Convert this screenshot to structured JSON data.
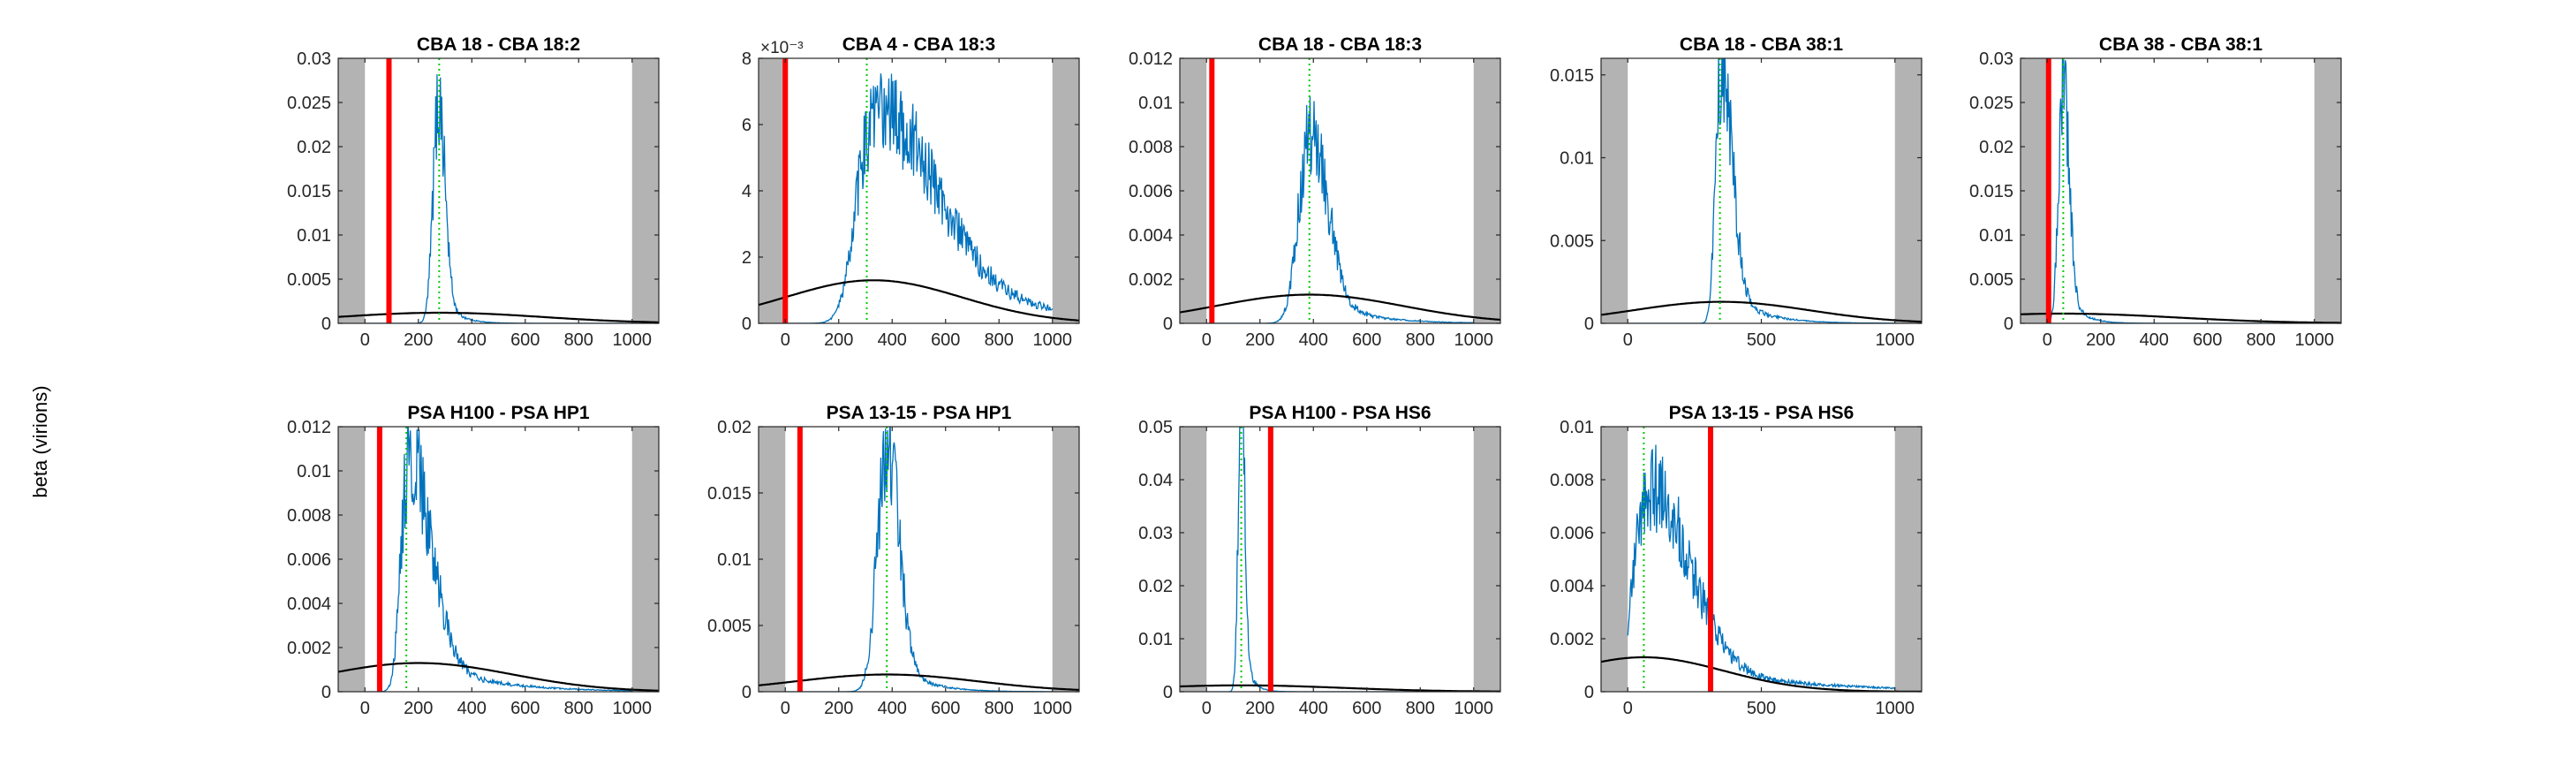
{
  "figure": {
    "ylabel": "beta (virions)"
  },
  "chart_data": [
    {
      "type": "line",
      "title": "CBA 18 - CBA 18:2",
      "xlim": [
        -100,
        1100
      ],
      "ylim": [
        0,
        0.03
      ],
      "yticks": [
        0,
        0.005,
        0.01,
        0.015,
        0.02,
        0.025,
        0.03
      ],
      "ytick_labels": [
        "0",
        "0.005",
        "0.01",
        "0.015",
        "0.02",
        "0.025",
        "0.03"
      ],
      "xticks": [
        0,
        200,
        400,
        600,
        800,
        1000
      ],
      "xtick_labels": [
        "0",
        "200",
        "400",
        "600",
        "800",
        "1000"
      ],
      "y_exponent": "",
      "shaded_x": [
        [
          -100,
          0
        ],
        [
          1000,
          1100
        ]
      ],
      "red_line_x": 90,
      "green_line_x": 278,
      "peak": {
        "center": 275,
        "width": 20,
        "height": 0.0245,
        "skew": 0.2
      },
      "prior": {
        "mean": 280,
        "sd": 380,
        "height": 0.0012
      }
    },
    {
      "type": "line",
      "title": "CBA 4 - CBA 18:3",
      "xlim": [
        -100,
        1100
      ],
      "ylim": [
        0,
        8
      ],
      "yticks": [
        0,
        2,
        4,
        6,
        8
      ],
      "ytick_labels": [
        "0",
        "2",
        "4",
        "6",
        "8"
      ],
      "xticks": [
        0,
        200,
        400,
        600,
        800,
        1000
      ],
      "xtick_labels": [
        "0",
        "200",
        "400",
        "600",
        "800",
        "1000"
      ],
      "y_exponent": "×10⁻³",
      "shaded_x": [
        [
          -100,
          0
        ],
        [
          1000,
          1100
        ]
      ],
      "red_line_x": 0,
      "green_line_x": 305,
      "peak": {
        "center": 320,
        "width": 55,
        "height": 5.9,
        "skew": 3.2
      },
      "prior": {
        "mean": 330,
        "sd": 330,
        "height": 1.3
      }
    },
    {
      "type": "line",
      "title": "CBA 18 - CBA 18:3",
      "xlim": [
        -100,
        1100
      ],
      "ylim": [
        0,
        0.012
      ],
      "yticks": [
        0,
        0.002,
        0.004,
        0.006,
        0.008,
        0.01,
        0.012
      ],
      "ytick_labels": [
        "0",
        "0.002",
        "0.004",
        "0.006",
        "0.008",
        "0.01",
        "0.012"
      ],
      "xticks": [
        0,
        200,
        400,
        600,
        800,
        1000
      ],
      "xtick_labels": [
        "0",
        "200",
        "400",
        "600",
        "800",
        "1000"
      ],
      "y_exponent": "",
      "shaded_x": [
        [
          -100,
          0
        ],
        [
          1000,
          1100
        ]
      ],
      "red_line_x": 20,
      "green_line_x": 385,
      "peak": {
        "center": 385,
        "width": 40,
        "height": 0.0085,
        "skew": 0.6
      },
      "prior": {
        "mean": 385,
        "sd": 350,
        "height": 0.0013
      }
    },
    {
      "type": "line",
      "title": "CBA 18 - CBA 38:1",
      "xlim": [
        -100,
        1100
      ],
      "ylim": [
        0,
        0.016
      ],
      "yticks": [
        0,
        0.005,
        0.01,
        0.015
      ],
      "ytick_labels": [
        "0",
        "0.005",
        "0.01",
        "0.015"
      ],
      "xticks": [
        0,
        500,
        1000
      ],
      "xtick_labels": [
        "0",
        "500",
        "1000"
      ],
      "y_exponent": "",
      "shaded_x": [
        [
          -100,
          0
        ],
        [
          1000,
          1100
        ]
      ],
      "red_line_x": null,
      "green_line_x": 345,
      "peak": {
        "center": 345,
        "width": 18,
        "height": 0.0145,
        "skew": 1.4
      },
      "prior": {
        "mean": 350,
        "sd": 330,
        "height": 0.0013
      }
    },
    {
      "type": "line",
      "title": "CBA 38 - CBA 38:1",
      "xlim": [
        -100,
        1100
      ],
      "ylim": [
        0,
        0.03
      ],
      "yticks": [
        0,
        0.005,
        0.01,
        0.015,
        0.02,
        0.025,
        0.03
      ],
      "ytick_labels": [
        "0",
        "0.005",
        "0.01",
        "0.015",
        "0.02",
        "0.025",
        "0.03"
      ],
      "xticks": [
        0,
        200,
        400,
        600,
        800,
        1000
      ],
      "xtick_labels": [
        "0",
        "200",
        "400",
        "600",
        "800",
        "1000"
      ],
      "y_exponent": "",
      "shaded_x": [
        [
          -100,
          0
        ],
        [
          1000,
          1100
        ]
      ],
      "red_line_x": 5,
      "green_line_x": 60,
      "peak": {
        "center": 58,
        "width": 16,
        "height": 0.027,
        "skew": 0.4
      },
      "prior": {
        "mean": 60,
        "sd": 420,
        "height": 0.0011
      }
    },
    {
      "type": "line",
      "title": "PSA H100 - PSA HP1",
      "xlim": [
        -100,
        1100
      ],
      "ylim": [
        0,
        0.012
      ],
      "yticks": [
        0,
        0.002,
        0.004,
        0.006,
        0.008,
        0.01,
        0.012
      ],
      "ytick_labels": [
        "0",
        "0.002",
        "0.004",
        "0.006",
        "0.008",
        "0.01",
        "0.012"
      ],
      "xticks": [
        0,
        200,
        400,
        600,
        800,
        1000
      ],
      "xtick_labels": [
        "0",
        "200",
        "400",
        "600",
        "800",
        "1000"
      ],
      "y_exponent": "",
      "shaded_x": [
        [
          -100,
          0
        ],
        [
          1000,
          1100
        ]
      ],
      "red_line_x": 55,
      "green_line_x": 155,
      "peak": {
        "center": 158,
        "width": 25,
        "height": 0.0098,
        "skew": 2.4
      },
      "prior": {
        "mean": 200,
        "sd": 350,
        "height": 0.0013
      }
    },
    {
      "type": "line",
      "title": "PSA 13-15 - PSA HP1",
      "xlim": [
        -100,
        1100
      ],
      "ylim": [
        0,
        0.02
      ],
      "yticks": [
        0,
        0.005,
        0.01,
        0.015,
        0.02
      ],
      "ytick_labels": [
        "0",
        "0.005",
        "0.01",
        "0.015",
        "0.02"
      ],
      "xticks": [
        0,
        200,
        400,
        600,
        800,
        1000
      ],
      "xtick_labels": [
        "0",
        "200",
        "400",
        "600",
        "800",
        "1000"
      ],
      "y_exponent": "",
      "shaded_x": [
        [
          -100,
          0
        ],
        [
          1000,
          1100
        ]
      ],
      "red_line_x": 55,
      "green_line_x": 380,
      "peak": {
        "center": 378,
        "width": 35,
        "height": 0.0178,
        "skew": 0.3
      },
      "prior": {
        "mean": 380,
        "sd": 340,
        "height": 0.0013
      }
    },
    {
      "type": "line",
      "title": "PSA H100 - PSA HS6",
      "xlim": [
        -100,
        1100
      ],
      "ylim": [
        0,
        0.05
      ],
      "yticks": [
        0,
        0.01,
        0.02,
        0.03,
        0.04,
        0.05
      ],
      "ytick_labels": [
        "0",
        "0.01",
        "0.02",
        "0.03",
        "0.04",
        "0.05"
      ],
      "xticks": [
        0,
        200,
        400,
        600,
        800,
        1000
      ],
      "xtick_labels": [
        "0",
        "200",
        "400",
        "600",
        "800",
        "1000"
      ],
      "y_exponent": "",
      "shaded_x": [
        [
          -100,
          0
        ],
        [
          1000,
          1100
        ]
      ],
      "red_line_x": 240,
      "green_line_x": 130,
      "peak": {
        "center": 130,
        "width": 11,
        "height": 0.056,
        "skew": 0.2
      },
      "prior": {
        "mean": 130,
        "sd": 380,
        "height": 0.0012
      }
    },
    {
      "type": "line",
      "title": "PSA 13-15 - PSA HS6",
      "xlim": [
        -100,
        1100
      ],
      "ylim": [
        0,
        0.01
      ],
      "yticks": [
        0,
        0.002,
        0.004,
        0.006,
        0.008,
        0.01
      ],
      "ytick_labels": [
        "0",
        "0.002",
        "0.004",
        "0.006",
        "0.008",
        "0.01"
      ],
      "xticks": [
        0,
        500,
        1000
      ],
      "xtick_labels": [
        "0",
        "500",
        "1000"
      ],
      "y_exponent": "",
      "shaded_x": [
        [
          -100,
          0
        ],
        [
          1000,
          1100
        ]
      ],
      "red_line_x": 310,
      "green_line_x": 60,
      "peak": {
        "center": 65,
        "width": 45,
        "height": 0.0072,
        "skew": 2.4
      },
      "prior": {
        "mean": 60,
        "sd": 300,
        "height": 0.0013
      }
    }
  ],
  "colors": {
    "histogram": "#0072BD",
    "prior": "#000000",
    "red_line": "#ff0000",
    "green_line": "#00cc00",
    "shade": "#b3b3b3"
  }
}
